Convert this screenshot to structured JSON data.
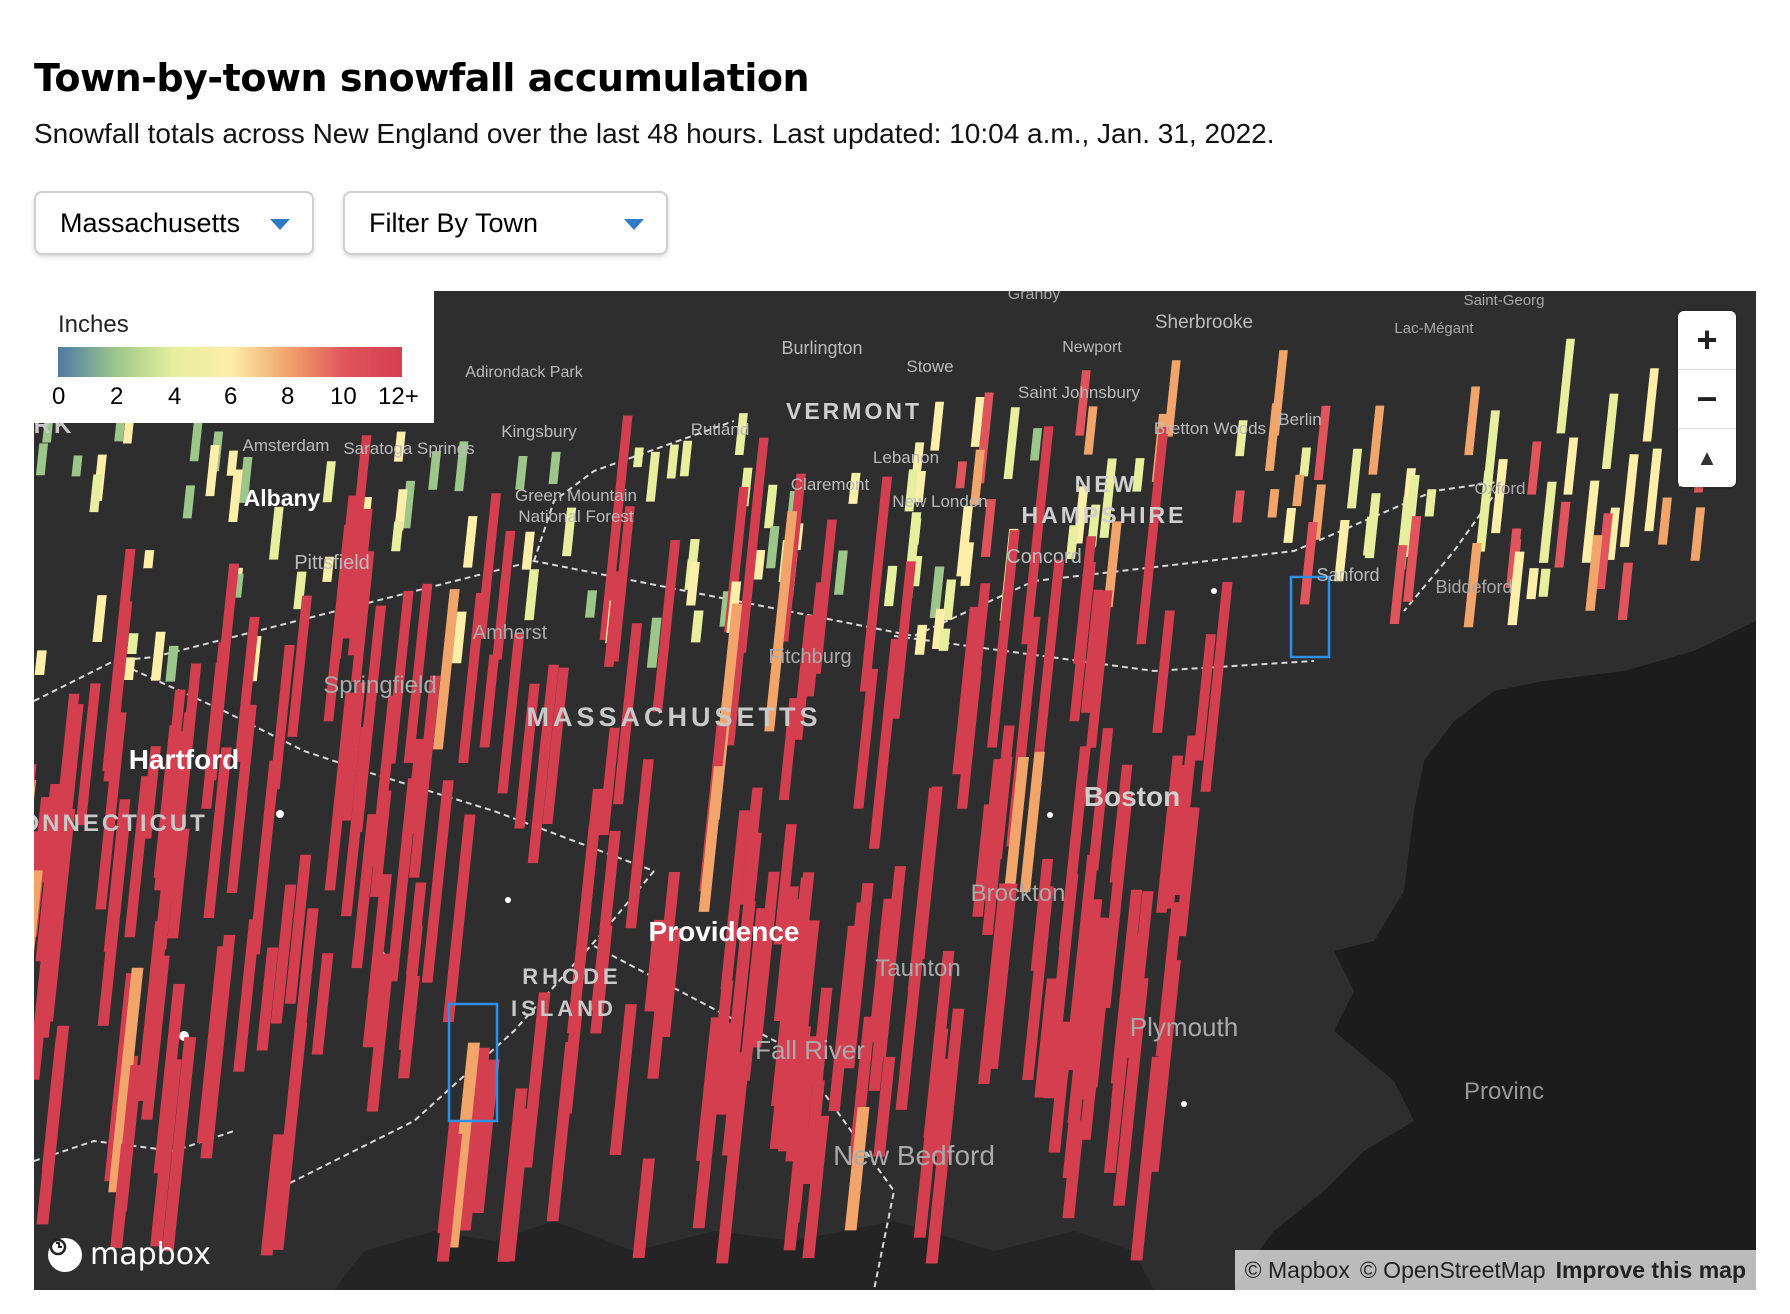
{
  "header": {
    "title": "Town-by-town snowfall accumulation",
    "subtitle": "Snowfall totals across New England over the last 48 hours. Last updated: 10:04 a.m., Jan. 31, 2022."
  },
  "filters": {
    "state": "Massachusetts",
    "town": "Filter By Town"
  },
  "legend": {
    "title": "Inches",
    "ticks": [
      "0",
      "2",
      "4",
      "6",
      "8",
      "10",
      "12+"
    ],
    "colors": [
      "#4e79a7",
      "#9cc68a",
      "#e5ef9d",
      "#fdeeaa",
      "#f2a56b",
      "#e0555c",
      "#d43f4f"
    ]
  },
  "map": {
    "place_labels": [
      {
        "text": "Granby"
      },
      {
        "text": "Sherbrooke"
      },
      {
        "text": "Saint-Georg"
      },
      {
        "text": "Burlington"
      },
      {
        "text": "Newport"
      },
      {
        "text": "Lac-Mégant"
      },
      {
        "text": "Adirondack Park"
      },
      {
        "text": "Stowe"
      },
      {
        "text": "Saint Johnsbury"
      },
      {
        "text": "VERMONT"
      },
      {
        "text": "Bretton Woods"
      },
      {
        "text": "Berlin"
      },
      {
        "text": "Kingsbury"
      },
      {
        "text": "Rutland"
      },
      {
        "text": "Amsterdam"
      },
      {
        "text": "Saratoga Springs"
      },
      {
        "text": "Lebanon"
      },
      {
        "text": "Albany"
      },
      {
        "text": "Green Mountain"
      },
      {
        "text": "National Forest"
      },
      {
        "text": "Claremont"
      },
      {
        "text": "NEW"
      },
      {
        "text": "New London"
      },
      {
        "text": "HAMPSHIRE"
      },
      {
        "text": "Oxford"
      },
      {
        "text": "Pittsfield"
      },
      {
        "text": "Concord"
      },
      {
        "text": "Sanford"
      },
      {
        "text": "Biddeford"
      },
      {
        "text": "Amherst"
      },
      {
        "text": "Fitchburg"
      },
      {
        "text": "Springfield"
      },
      {
        "text": "MASSACHUSETTS"
      },
      {
        "text": "Hartford"
      },
      {
        "text": "Boston"
      },
      {
        "text": "CONNECTICUT"
      },
      {
        "text": "Brockton"
      },
      {
        "text": "Providence"
      },
      {
        "text": "Taunton"
      },
      {
        "text": "RHODE"
      },
      {
        "text": "ISLAND"
      },
      {
        "text": "Plymouth"
      },
      {
        "text": "Fall River"
      },
      {
        "text": "Provinc"
      },
      {
        "text": "New Bedford"
      },
      {
        "text": "RK"
      }
    ],
    "controls": {
      "zoom_in": "+",
      "zoom_out": "−",
      "compass": "▲"
    },
    "logo": "mapbox",
    "attribution": {
      "mapbox": "© Mapbox",
      "osm": "© OpenStreetMap",
      "improve": "Improve this map"
    }
  }
}
